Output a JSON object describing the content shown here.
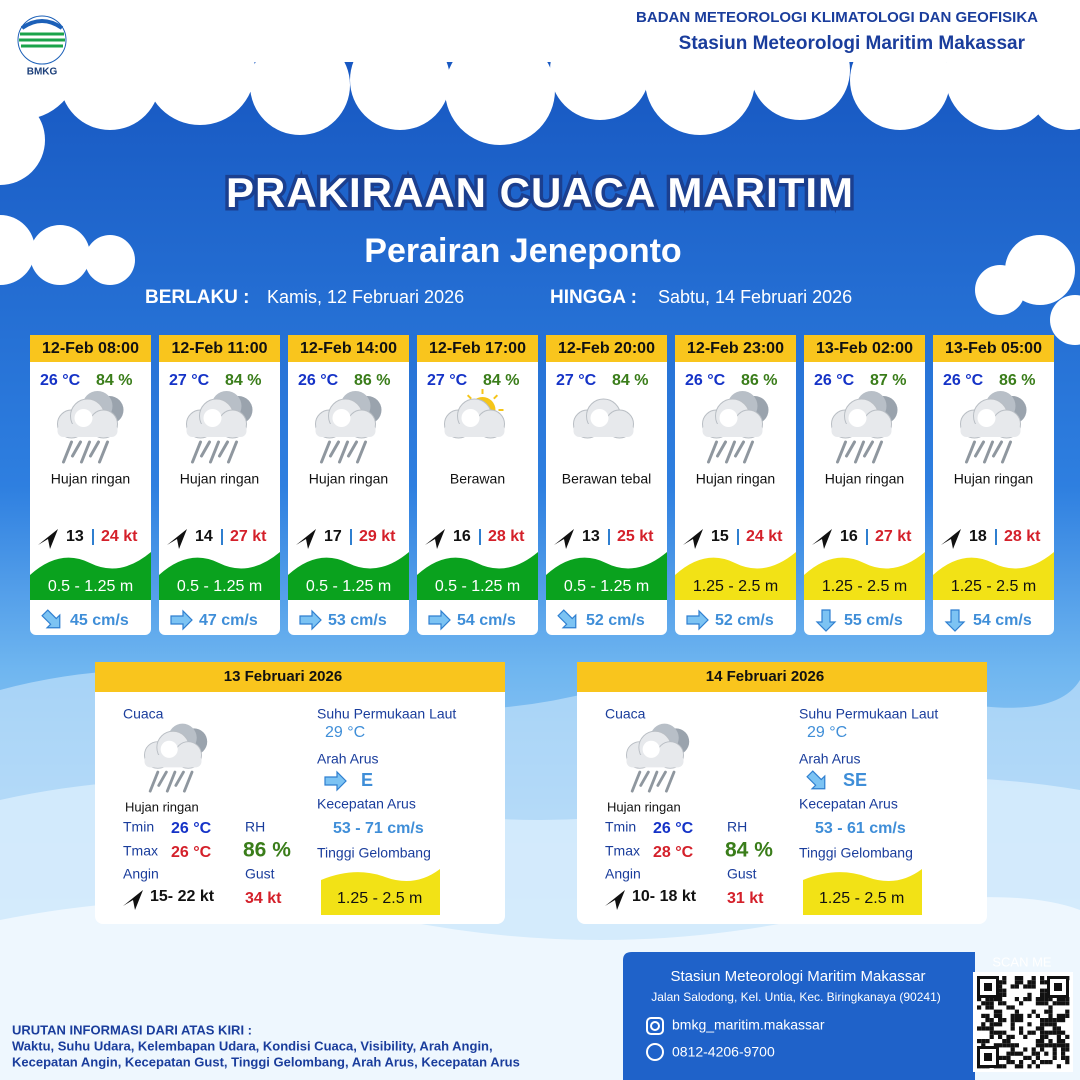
{
  "header": {
    "logo": "BMKG",
    "org": "BADAN METEOROLOGI KLIMATOLOGI DAN GEOFISIKA",
    "station": "Stasiun Meteorologi Maritim Makassar"
  },
  "title": "PRAKIRAAN CUACA MARITIM",
  "subtitle": "Perairan Jeneponto",
  "validity": {
    "from_label": "BERLAKU :",
    "from": "Kamis, 12 Februari 2026",
    "to_label": "HINGGA :",
    "to": "Sabtu, 14 Februari 2026"
  },
  "forecasts": [
    {
      "time": "12-Feb 08:00",
      "temp": "26 °C",
      "rh": "84 %",
      "weather": "Hujan ringan",
      "wind": "13",
      "gust": "24 kt",
      "wave": "0.5 - 1.25 m",
      "wave_color": "#0aa21e",
      "current": "45 cm/s"
    },
    {
      "time": "12-Feb 11:00",
      "temp": "27 °C",
      "rh": "84 %",
      "weather": "Hujan ringan",
      "wind": "14",
      "gust": "27 kt",
      "wave": "0.5 - 1.25 m",
      "wave_color": "#0aa21e",
      "current": "47 cm/s"
    },
    {
      "time": "12-Feb 14:00",
      "temp": "26 °C",
      "rh": "86 %",
      "weather": "Hujan ringan",
      "wind": "17",
      "gust": "29 kt",
      "wave": "0.5 - 1.25 m",
      "wave_color": "#0aa21e",
      "current": "53 cm/s"
    },
    {
      "time": "12-Feb 17:00",
      "temp": "27 °C",
      "rh": "84 %",
      "weather": "Berawan",
      "wind": "16",
      "gust": "28 kt",
      "wave": "0.5 - 1.25 m",
      "wave_color": "#0aa21e",
      "current": "54 cm/s"
    },
    {
      "time": "12-Feb 20:00",
      "temp": "27 °C",
      "rh": "84 %",
      "weather": "Berawan tebal",
      "wind": "13",
      "gust": "25 kt",
      "wave": "0.5 - 1.25 m",
      "wave_color": "#0aa21e",
      "current": "52 cm/s"
    },
    {
      "time": "12-Feb 23:00",
      "temp": "26 °C",
      "rh": "86 %",
      "weather": "Hujan ringan",
      "wind": "15",
      "gust": "24 kt",
      "wave": "1.25 - 2.5 m",
      "wave_color": "#f2e216",
      "current": "52 cm/s"
    },
    {
      "time": "13-Feb 02:00",
      "temp": "26 °C",
      "rh": "87 %",
      "weather": "Hujan ringan",
      "wind": "16",
      "gust": "27 kt",
      "wave": "1.25 - 2.5 m",
      "wave_color": "#f2e216",
      "current": "55 cm/s"
    },
    {
      "time": "13-Feb 05:00",
      "temp": "26 °C",
      "rh": "86 %",
      "weather": "Hujan ringan",
      "wind": "18",
      "gust": "28 kt",
      "wave": "1.25 - 2.5 m",
      "wave_color": "#f2e216",
      "current": "54 cm/s"
    }
  ],
  "panel_labels": {
    "weather": "Cuaca",
    "tmin": "Tmin",
    "tmax": "Tmax",
    "rh": "RH",
    "wind": "Angin",
    "gust": "Gust",
    "sst": "Suhu Permukaan Laut",
    "current_dir": "Arah Arus",
    "current_speed": "Kecepatan Arus",
    "wave": "Tinggi Gelombang"
  },
  "daily": [
    {
      "date": "13 Februari 2026",
      "weather": "Hujan ringan",
      "tmin": "26 °C",
      "tmax": "26 °C",
      "rh": "86 %",
      "wind": "15- 22 kt",
      "gust": "34 kt",
      "sst": "29 °C",
      "current_dir": "E",
      "current_speed": "53  - 71 cm/s",
      "wave": "1.25 - 2.5 m"
    },
    {
      "date": "14 Februari 2026",
      "weather": "Hujan ringan",
      "tmin": "26 °C",
      "tmax": "28 °C",
      "rh": "84 %",
      "wind": "10- 18 kt",
      "gust": "31 kt",
      "sst": "29 °C",
      "current_dir": "SE",
      "current_speed": "53  - 61 cm/s",
      "wave": "1.25 - 2.5 m"
    }
  ],
  "footer": {
    "info_title": "URUTAN INFORMASI DARI ATAS KIRI :",
    "info_lines": [
      "Waktu, Suhu Udara, Kelembapan Udara, Kondisi Cuaca, Visibility, Arah Angin,",
      "Kecepatan Angin, Kecepatan Gust, Tinggi Gelombang, Arah Arus, Kecepatan Arus"
    ],
    "contact": {
      "name": "Stasiun Meteorologi Maritim Makassar",
      "address": "Jalan Salodong, Kel. Untia, Kec. Biringkanaya (90241)",
      "instagram": "bmkg_maritim.makassar",
      "phone": "0812-4206-9700"
    },
    "scan": "SCAN ME"
  }
}
